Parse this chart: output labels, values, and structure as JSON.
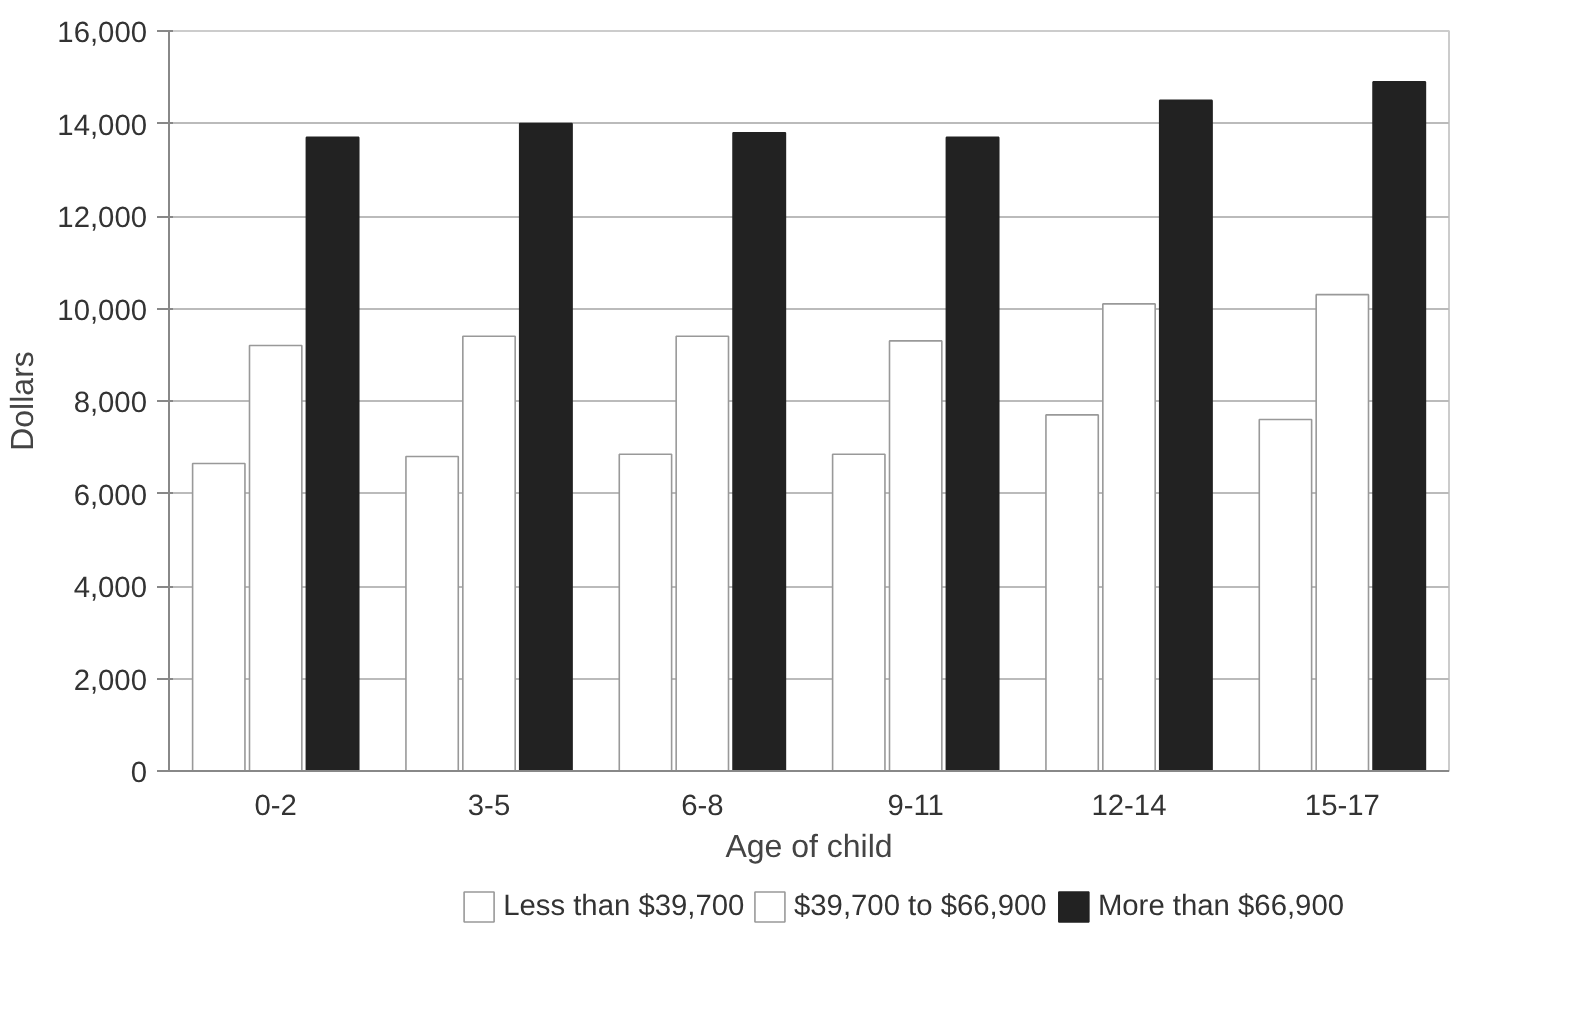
{
  "chart_data": {
    "type": "bar",
    "xlabel": "Age of child",
    "ylabel": "Dollars",
    "categories": [
      "0-2",
      "3-5",
      "6-8",
      "9-11",
      "12-14",
      "15-17"
    ],
    "series": [
      {
        "name": "Less than $39,700",
        "color": "#ffffff",
        "values": [
          6650,
          6800,
          6850,
          6850,
          7700,
          7600
        ]
      },
      {
        "name": "$39,700 to $66,900",
        "color": "#ffffff",
        "values": [
          9200,
          9400,
          9400,
          9300,
          10100,
          10300
        ]
      },
      {
        "name": "More than $66,900",
        "color": "#222222",
        "values": [
          13700,
          14000,
          13800,
          13700,
          14500,
          14900
        ]
      }
    ],
    "ylim": [
      0,
      16000
    ],
    "yticks": [
      {
        "value": 0,
        "label": "0"
      },
      {
        "value": 2000,
        "label": "2,000"
      },
      {
        "value": 4000,
        "label": "4,000"
      },
      {
        "value": 6000,
        "label": "6,000"
      },
      {
        "value": 8000,
        "label": "8,000"
      },
      {
        "value": 10000,
        "label": "10,000"
      },
      {
        "value": 12000,
        "label": "12,000"
      },
      {
        "value": 14000,
        "label": "14,000"
      },
      {
        "value": 16000,
        "label": "16,000"
      }
    ],
    "grid": "y",
    "legend": "bottom"
  }
}
